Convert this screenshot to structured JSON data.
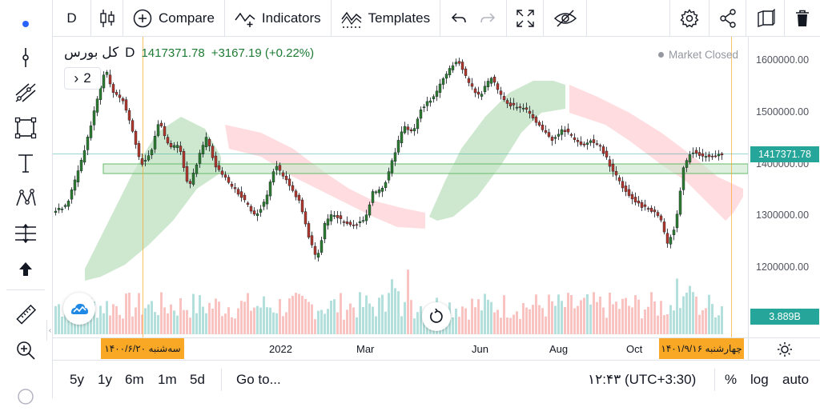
{
  "top_toolbar": {
    "interval": "D",
    "compare_label": "Compare",
    "indicators_label": "Indicators",
    "templates_label": "Templates"
  },
  "legend": {
    "symbol": "کل بورس",
    "interval": "D",
    "last_price": "1417371.78",
    "change": "+3167.19 (+0.22%)",
    "indicators_count": "2"
  },
  "market_status": "Market Closed",
  "price_axis": {
    "ticks": [
      "1600000.00",
      "1500000.00",
      "1400000.00",
      "1300000.00",
      "1200000.00"
    ],
    "last_price_label": "1417371.78",
    "volume_label": "3.889B",
    "last_price_color": "#26a69a",
    "volume_color": "#26a69a"
  },
  "time_axis": {
    "labels": [
      "2022",
      "Mar",
      "Jun",
      "Aug",
      "Oct"
    ],
    "highlight_left": "سه‌شنبه ۱۴۰۰/۶/۲۰",
    "highlight_right": "چهارشنبه ۱۴۰۱/۹/۱۶",
    "highlight_color": "#f9a825"
  },
  "bottom_toolbar": {
    "ranges": [
      "5y",
      "1y",
      "6m",
      "1m",
      "5d"
    ],
    "goto_label": "Go to...",
    "time": "۱۲:۴۳ (UTC+3:30)",
    "percent_label": "%",
    "log_label": "log",
    "auto_label": "auto"
  },
  "colors": {
    "up": "#26a69a",
    "down": "#ef5350",
    "candle_up_fill": "#2e7d32",
    "candle_down_fill": "#b03a2e",
    "cloud_green": "#a5d6a7",
    "cloud_red": "#ffcdd2",
    "accent": "#2962ff"
  }
}
